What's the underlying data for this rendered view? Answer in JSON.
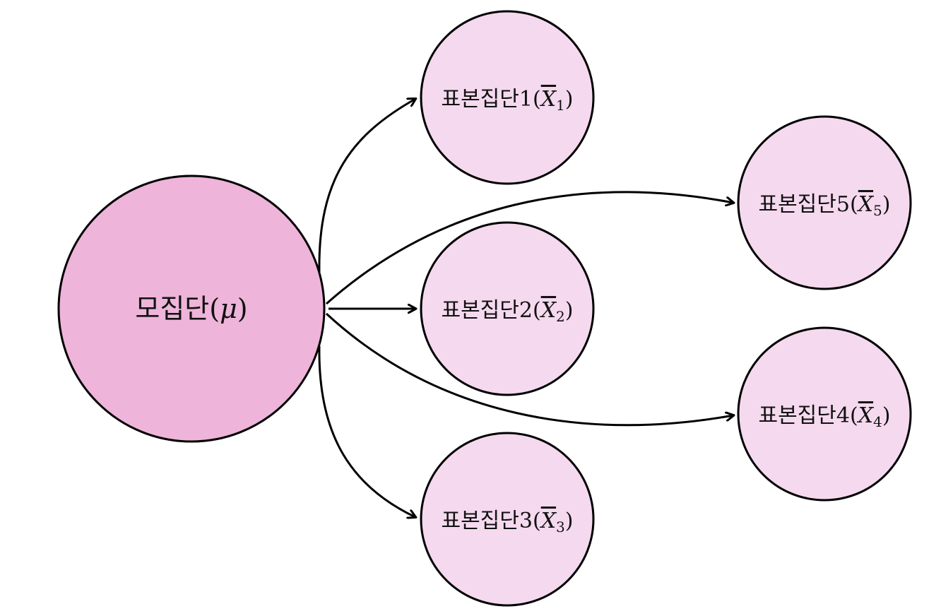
{
  "colors": {
    "population_fill": "#eeb4d9",
    "sample_fill": "#f5d9ee",
    "stroke": "#000000",
    "background": "#ffffff"
  },
  "population": {
    "label": "모집단(",
    "symbol": "μ",
    "close": ")"
  },
  "samples": [
    {
      "id": "1",
      "label": "표본집단1(",
      "symbol": "X",
      "subscript": "1",
      "close": ")"
    },
    {
      "id": "2",
      "label": "표본집단2(",
      "symbol": "X",
      "subscript": "2",
      "close": ")"
    },
    {
      "id": "3",
      "label": "표본집단3(",
      "symbol": "X",
      "subscript": "3",
      "close": ")"
    },
    {
      "id": "4",
      "label": "표본집단4(",
      "symbol": "X",
      "subscript": "4",
      "close": ")"
    },
    {
      "id": "5",
      "label": "표본집단5(",
      "symbol": "X",
      "subscript": "5",
      "close": ")"
    }
  ]
}
